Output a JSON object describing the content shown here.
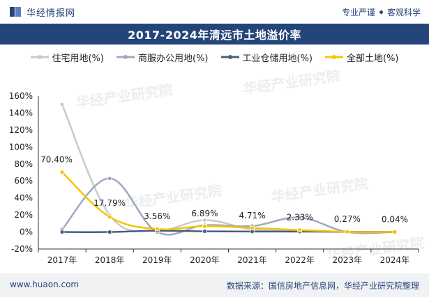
{
  "header": {
    "brand": "华经情报网",
    "tags": [
      "专业严谨",
      "客观科学"
    ]
  },
  "footer": {
    "left": "www.huaon.com",
    "right": "数据来源：国信房地产信息网，华经产业研究院整理"
  },
  "watermark": "华经产业研究院",
  "colors": {
    "header_bg": "#24457a",
    "residential": "#c5cad6",
    "commercial": "#9ea8bf",
    "industrial": "#4a5d80",
    "all": "#f5c400"
  },
  "chart_data": {
    "type": "line",
    "title": "2017-2024年清远市土地溢价率",
    "categories": [
      "2017年",
      "2018年",
      "2019年",
      "2020年",
      "2021年",
      "2022年",
      "2023年",
      "2024年"
    ],
    "y_ticks": [
      "160%",
      "140%",
      "120%",
      "100%",
      "80%",
      "60%",
      "40%",
      "20%",
      "0%",
      "-20%"
    ],
    "ylim": [
      -20,
      160
    ],
    "legend_position": "top",
    "series": [
      {
        "name": "住宅用地(%)",
        "color": "#c5cad6",
        "values": [
          150,
          20,
          2,
          14,
          3,
          1,
          0,
          0
        ]
      },
      {
        "name": "商服办公用地(%)",
        "color": "#9ea8bf",
        "values": [
          3,
          63,
          0,
          8,
          7,
          17,
          0,
          0
        ]
      },
      {
        "name": "工业仓储用地(%)",
        "color": "#4a5d80",
        "values": [
          0,
          0,
          1.5,
          0.8,
          0.6,
          0.5,
          0.3,
          0
        ]
      },
      {
        "name": "全部土地(%)",
        "color": "#f5c400",
        "values": [
          70.4,
          17.79,
          3.56,
          6.89,
          4.71,
          2.33,
          0.27,
          0.04
        ],
        "labels": [
          "70.40%",
          "17.79%",
          "3.56%",
          "6.89%",
          "4.71%",
          "2.33%",
          "0.27%",
          "0.04%"
        ]
      }
    ]
  }
}
